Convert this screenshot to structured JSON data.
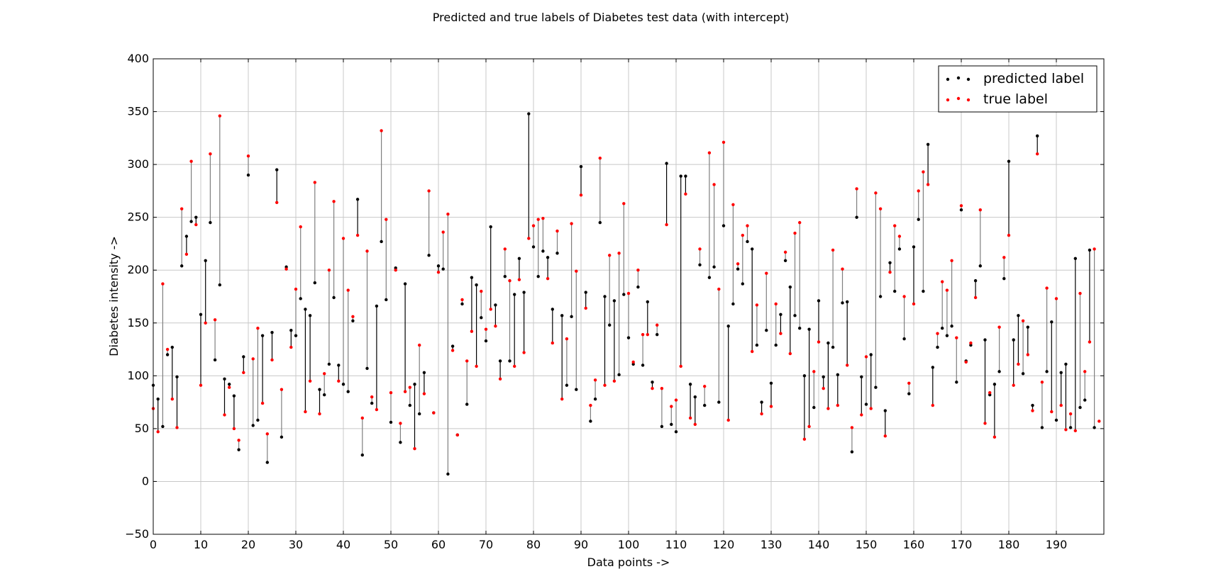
{
  "chart_data": {
    "type": "scatter",
    "title": "Predicted and true labels of Diabetes test data (with intercept)",
    "xlabel": "Data points ->",
    "ylabel": "Diabetes intensity ->",
    "xlim": [
      0,
      200
    ],
    "ylim": [
      -50,
      400
    ],
    "xticks": [
      0,
      10,
      20,
      30,
      40,
      50,
      60,
      70,
      80,
      90,
      100,
      110,
      120,
      130,
      140,
      150,
      160,
      170,
      180,
      190
    ],
    "yticks": [
      -50,
      0,
      50,
      100,
      150,
      200,
      250,
      300,
      350,
      400
    ],
    "grid": true,
    "legend": {
      "placement": "top-right"
    },
    "series": [
      {
        "name": "predicted label",
        "color": "#000000",
        "values": [
          91,
          78,
          52,
          120,
          127,
          99,
          204,
          232,
          246,
          250,
          158,
          209,
          245,
          115,
          186,
          97,
          92,
          81,
          30,
          118,
          290,
          53,
          58,
          138,
          18,
          141,
          295,
          42,
          203,
          143,
          138,
          173,
          163,
          157,
          188,
          87,
          82,
          111,
          174,
          110,
          92,
          85,
          152,
          267,
          25,
          107,
          74,
          166,
          227,
          172,
          56,
          202,
          37,
          187,
          72,
          92,
          64,
          103,
          214,
          65,
          204,
          201,
          7,
          128,
          44,
          168,
          73,
          193,
          186,
          155,
          133,
          241,
          167,
          114,
          194,
          114,
          177,
          211,
          179,
          348,
          222,
          194,
          218,
          212,
          163,
          216,
          157,
          91,
          156,
          87,
          298,
          179,
          57,
          78,
          245,
          175,
          148,
          171,
          101,
          177,
          136,
          111,
          184,
          110,
          170,
          94,
          139,
          52,
          301,
          54,
          47,
          289,
          289,
          92,
          80,
          205,
          72,
          193,
          203,
          75,
          242,
          147,
          168,
          201,
          187,
          227,
          220,
          129,
          75,
          143,
          93,
          129,
          158,
          209,
          184,
          157,
          145,
          100,
          144,
          70,
          171,
          99,
          131,
          127,
          101,
          169,
          170,
          28,
          250,
          99,
          73,
          120,
          89,
          175,
          67,
          207,
          180,
          220,
          135,
          83,
          222,
          248,
          180,
          319,
          108,
          127,
          145,
          138,
          147,
          94,
          257,
          114,
          129,
          190,
          204,
          134,
          82,
          92,
          104,
          192,
          303,
          134,
          157,
          102,
          146,
          72,
          327,
          51,
          104,
          151,
          58,
          103,
          111,
          51,
          211,
          70,
          77,
          219,
          51
        ]
      },
      {
        "name": "true label",
        "color": "#ff0000",
        "values": [
          69,
          47,
          187,
          125,
          78,
          51,
          258,
          215,
          303,
          243,
          91,
          150,
          310,
          153,
          346,
          63,
          89,
          50,
          39,
          103,
          308,
          116,
          145,
          74,
          45,
          115,
          264,
          87,
          201,
          127,
          182,
          241,
          66,
          95,
          283,
          64,
          102,
          200,
          265,
          95,
          230,
          181,
          156,
          233,
          60,
          218,
          80,
          68,
          332,
          248,
          84,
          200,
          55,
          85,
          89,
          31,
          129,
          83,
          275,
          65,
          198,
          236,
          253,
          124,
          44,
          172,
          114,
          142,
          109,
          180,
          144,
          163,
          147,
          97,
          220,
          190,
          109,
          191,
          122,
          230,
          242,
          248,
          249,
          192,
          131,
          237,
          78,
          135,
          244,
          199,
          271,
          164,
          72,
          96,
          306,
          91,
          214,
          95,
          216,
          263,
          178,
          113,
          200,
          139,
          139,
          88,
          148,
          88,
          243,
          71,
          77,
          109,
          272,
          60,
          54,
          220,
          90,
          311,
          281,
          182,
          321,
          58,
          262,
          206,
          233,
          242,
          123,
          167,
          64,
          197,
          71,
          168,
          140,
          217,
          121,
          235,
          245,
          40,
          52,
          104,
          132,
          88,
          69,
          219,
          72,
          201,
          110,
          51,
          277,
          63,
          118,
          69,
          273,
          258,
          43,
          198,
          242,
          232,
          175,
          93,
          168,
          275,
          293,
          281,
          72,
          140,
          189,
          181,
          209,
          136,
          261,
          113,
          131,
          174,
          257,
          55,
          84,
          42,
          146,
          212,
          233,
          91,
          111,
          152,
          120,
          67,
          310,
          94,
          183,
          66,
          173,
          72,
          49,
          64,
          48,
          178,
          104,
          132,
          220,
          57
        ]
      }
    ]
  }
}
